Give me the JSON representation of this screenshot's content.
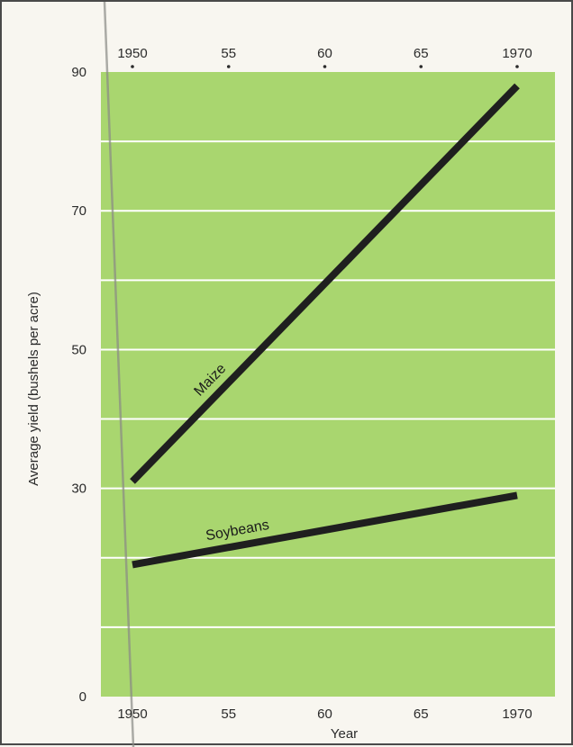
{
  "chart_data": {
    "type": "line",
    "title": "",
    "xlabel": "Year",
    "ylabel": "Average yield (bushels per acre)",
    "xlim": [
      1950,
      1970
    ],
    "ylim": [
      0,
      90
    ],
    "grid": true,
    "colors": {
      "plot_background": "#a9d66f",
      "gridline": "#ffffff",
      "series_line": "#1f1f1f"
    },
    "x_ticks": [
      1950,
      1955,
      1960,
      1965,
      1970
    ],
    "x_tick_labels_bottom": [
      "1950",
      "55",
      "60",
      "65",
      "1970"
    ],
    "x_tick_labels_top": [
      "1950",
      "55",
      "60",
      "65",
      "1970"
    ],
    "y_ticks": [
      0,
      30,
      50,
      70,
      90
    ],
    "y_tick_labels": [
      "0",
      "30",
      "50",
      "70",
      "90"
    ],
    "series": [
      {
        "name": "Maize",
        "x": [
          1950,
          1970
        ],
        "y": [
          31,
          88
        ]
      },
      {
        "name": "Soybeans",
        "x": [
          1950,
          1970
        ],
        "y": [
          19,
          29
        ]
      }
    ]
  }
}
